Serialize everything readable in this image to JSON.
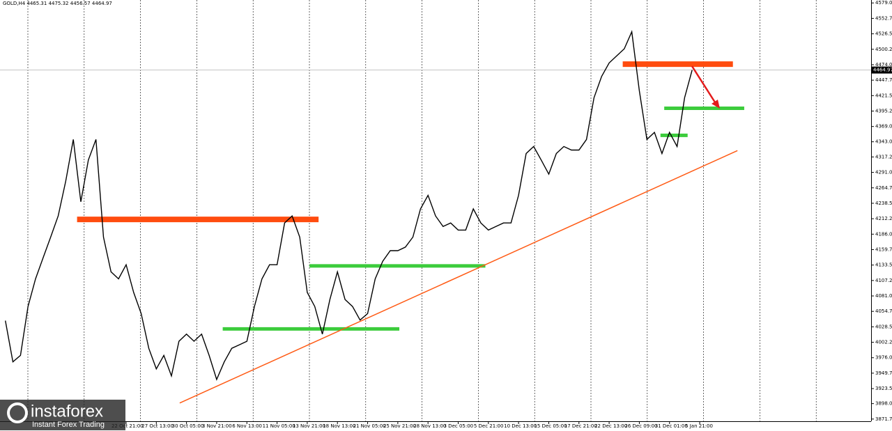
{
  "chart_data": {
    "type": "line",
    "title": "GOLD,H4  4465.31 4475.32 4456.57 4464.97",
    "categories": [
      null,
      null,
      null,
      null,
      null,
      null,
      null,
      null,
      null,
      null,
      null,
      null,
      null,
      null,
      null,
      null,
      "22 Oct 21:00",
      null,
      null,
      null,
      "27 Oct 13:00",
      null,
      null,
      null,
      "30 Oct 05:00",
      null,
      null,
      null,
      "3 Nov 21:00",
      null,
      null,
      null,
      "6 Nov 13:00",
      null,
      null,
      null,
      "11 Nov 05:00",
      null,
      null,
      null,
      "13 Nov 21:00",
      null,
      null,
      null,
      "18 Nov 13:00",
      null,
      null,
      null,
      "21 Nov 05:00",
      null,
      null,
      null,
      "25 Nov 21:00",
      null,
      null,
      null,
      "28 Nov 13:00",
      null,
      null,
      null,
      "3 Dec 05:00",
      null,
      null,
      null,
      "5 Dec 21:00",
      null,
      null,
      null,
      "10 Dec 13:00",
      null,
      null,
      null,
      "15 Dec 05:00",
      null,
      null,
      null,
      "17 Dec 21:00",
      null,
      null,
      null,
      "22 Dec 13:00",
      null,
      null,
      null,
      "26 Dec 09:00",
      null,
      null,
      null,
      "31 Dec 01:00",
      null,
      null,
      null,
      "5 Jan 21:00"
    ],
    "values": [
      4039,
      3969,
      3980,
      4063,
      4110,
      4146,
      4181,
      4217,
      4276,
      4347,
      4241,
      4312,
      4347,
      4181,
      4122,
      4110,
      4134,
      4087,
      4051,
      3992,
      3957,
      3980,
      3945,
      4004,
      4016,
      4004,
      4016,
      3980,
      3939,
      3969,
      3992,
      3998,
      4004,
      4063,
      4110,
      4134,
      4134,
      4205,
      4217,
      4181,
      4087,
      4063,
      4016,
      4075,
      4122,
      4075,
      4063,
      4040,
      4051,
      4110,
      4140,
      4158,
      4158,
      4164,
      4181,
      4229,
      4252,
      4217,
      4199,
      4205,
      4193,
      4193,
      4229,
      4205,
      4193,
      4199,
      4205,
      4205,
      4252,
      4323,
      4335,
      4312,
      4288,
      4323,
      4335,
      4329,
      4329,
      4347,
      4418,
      4454,
      4477,
      4489,
      4501,
      4530,
      4430,
      4347,
      4359,
      4323,
      4359,
      4335,
      4418,
      4464.97,
      null
    ],
    "color": "#000000",
    "last_price": 4464.97,
    "ylim": [
      3868,
      4584
    ],
    "yticks": [
      {
        "value": 4579,
        "label": "4579.00"
      },
      4552.75,
      {
        "value": 4526.5,
        "label": "4526.50"
      },
      4500.25,
      {
        "value": 4474,
        "label": "4474.00"
      },
      4447.75,
      {
        "value": 4421.5,
        "label": "4421.50"
      },
      4395.25,
      {
        "value": 4369,
        "label": "4369.00"
      },
      {
        "value": 4343,
        "label": "4343.00"
      },
      4317.25,
      {
        "value": 4291,
        "label": "4291.00"
      },
      4264.75,
      {
        "value": 4238.5,
        "label": "4238.50"
      },
      4212.25,
      {
        "value": 4186,
        "label": "4186.00"
      },
      4159.75,
      {
        "value": 4133.5,
        "label": "4133.50"
      },
      4107.25,
      {
        "value": 4081,
        "label": "4081.00"
      },
      4054.75,
      {
        "value": 4028.5,
        "label": "4028.50"
      },
      4002.25,
      {
        "value": 3976,
        "label": "3976.00"
      },
      3949.75,
      {
        "value": 3923.5,
        "label": "3923.50"
      },
      {
        "value": 3898,
        "label": "3898.00"
      },
      3871.75
    ],
    "levels": [
      {
        "price": 4211,
        "color": "#ff4c0f",
        "from": 9.5,
        "to": 41.5
      },
      {
        "price": 4475,
        "color": "#ff4c0f",
        "from": 81.8,
        "to": 96.4
      },
      {
        "price": 4025,
        "color": "#3ccc3c",
        "from": 28.8,
        "to": 52.2
      },
      {
        "price": 4132,
        "color": "#3ccc3c",
        "from": 40.3,
        "to": 63.6
      },
      {
        "price": 4354,
        "color": "#3ccc3c",
        "from": 86.8,
        "to": 90.4
      },
      {
        "price": 4400,
        "color": "#3ccc3c",
        "from": 87.3,
        "to": 97.9
      }
    ],
    "trendline": {
      "color": "#ff5a14",
      "from": [
        23.1,
        3899
      ],
      "to": [
        97,
        4328
      ]
    },
    "brand": "instaforex",
    "brand_tagline": "Instant Forex Trading"
  }
}
